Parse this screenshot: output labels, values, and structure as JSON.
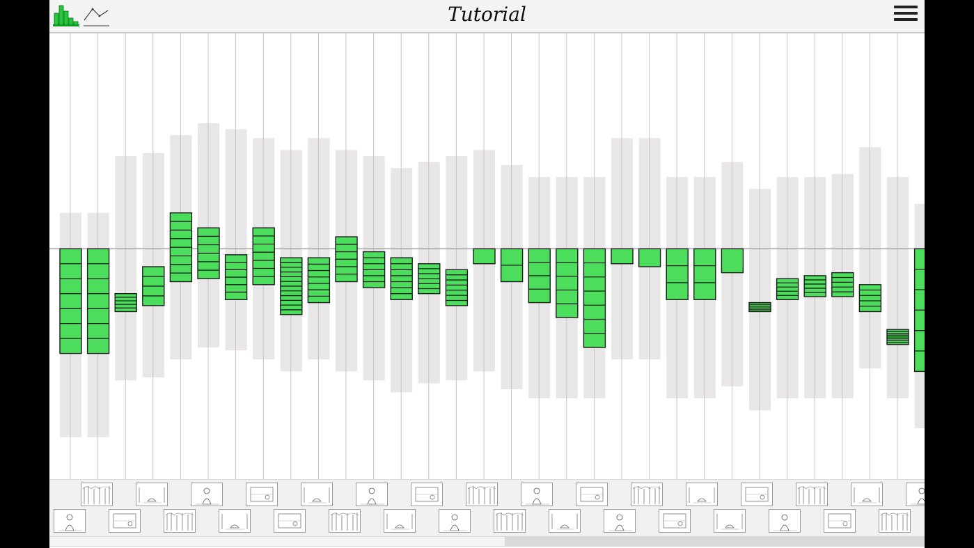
{
  "header": {
    "title": "Tutorial",
    "bar_view_icon": "bar-chart-icon",
    "line_view_icon": "line-chart-icon",
    "menu_icon": "hamburger-menu-icon"
  },
  "colors": {
    "bar_fill": "#4cdd5c",
    "bar_stroke": "#1c1c1c",
    "range_fill": "#e8e6e6",
    "grid_line": "#c4c4c4",
    "baseline": "#a3a3a3",
    "header_bg": "#f3f3f3"
  },
  "chart_data": {
    "type": "bar",
    "baseline": 0,
    "ylim": [
      -7.7,
      7.2
    ],
    "grid_lines": 32,
    "series": [
      {
        "name": "",
        "values": [
          -3.5,
          -3.5,
          0.6,
          1.3,
          2.3,
          1.7,
          1.5,
          1.9,
          1.9,
          1.5,
          1.5,
          1.2,
          1.4,
          1.0,
          1.2,
          -0.5,
          -1.1,
          -1.8,
          -2.3,
          -3.3,
          -0.5,
          -0.6,
          -1.7,
          -1.7,
          -0.8,
          0.3,
          0.7,
          0.7,
          0.8,
          0.9,
          0.5,
          -4.1
        ],
        "starts": [
          0,
          0,
          -2.1,
          -1.9,
          -1.1,
          -1.0,
          -1.7,
          -1.2,
          -2.2,
          -1.8,
          -1.1,
          -1.3,
          -1.7,
          -1.5,
          -1.9,
          0,
          0,
          0,
          0,
          0,
          0,
          0,
          0,
          0,
          0,
          -2.1,
          -1.7,
          -1.6,
          -1.6,
          -2.1,
          -3.2,
          0
        ],
        "segments": [
          7,
          7,
          5,
          4,
          8,
          6,
          6,
          7,
          12,
          7,
          6,
          6,
          7,
          6,
          7,
          1,
          2,
          4,
          5,
          7,
          1,
          1,
          3,
          3,
          1,
          5,
          5,
          5,
          5,
          5,
          8,
          6
        ]
      }
    ],
    "ranges": [
      [
        -6.3,
        1.2
      ],
      [
        -6.3,
        1.2
      ],
      [
        -4.4,
        3.1
      ],
      [
        -4.3,
        3.2
      ],
      [
        -3.7,
        3.8
      ],
      [
        -3.3,
        4.2
      ],
      [
        -3.4,
        4.0
      ],
      [
        -3.7,
        3.7
      ],
      [
        -4.1,
        3.3
      ],
      [
        -3.7,
        3.7
      ],
      [
        -4.1,
        3.3
      ],
      [
        -4.4,
        3.1
      ],
      [
        -4.8,
        2.7
      ],
      [
        -4.5,
        2.9
      ],
      [
        -4.4,
        3.1
      ],
      [
        -4.1,
        3.3
      ],
      [
        -4.7,
        2.8
      ],
      [
        -5.0,
        2.4
      ],
      [
        -5.0,
        2.4
      ],
      [
        -5.0,
        2.4
      ],
      [
        -3.7,
        3.7
      ],
      [
        -3.7,
        3.7
      ],
      [
        -5.0,
        2.4
      ],
      [
        -5.0,
        2.4
      ],
      [
        -4.6,
        2.9
      ],
      [
        -5.4,
        2.0
      ],
      [
        -5.0,
        2.4
      ],
      [
        -5.0,
        2.4
      ],
      [
        -5.0,
        2.5
      ],
      [
        -4.0,
        3.4
      ],
      [
        -5.0,
        2.4
      ],
      [
        -6.0,
        1.5
      ]
    ]
  },
  "thumbnails": {
    "top_row_count": 16,
    "bottom_row_count": 16,
    "images": [
      "forest-sketch",
      "campfire-sketch",
      "person-sketch",
      "room-sketch"
    ]
  },
  "scroll": {
    "position_fraction": 0.0,
    "visible_fraction": 0.52
  }
}
